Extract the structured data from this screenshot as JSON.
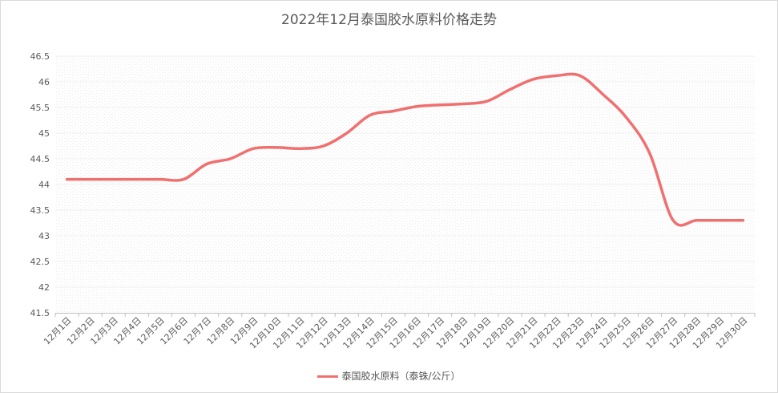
{
  "chart_data": {
    "type": "line",
    "title": "2022年12月泰国胶水原料价格走势",
    "xlabel": "",
    "ylabel": "",
    "ylim": [
      41.5,
      46.5
    ],
    "yticks": [
      "41.5",
      "42",
      "42.5",
      "43",
      "43.5",
      "44",
      "44.5",
      "45",
      "45.5",
      "46",
      "46.5"
    ],
    "categories": [
      "12月1日",
      "12月2日",
      "12月3日",
      "12月4日",
      "12月5日",
      "12月6日",
      "12月7日",
      "12月8日",
      "12月9日",
      "12月10日",
      "12月11日",
      "12月12日",
      "12月13日",
      "12月14日",
      "12月15日",
      "12月16日",
      "12月17日",
      "12月18日",
      "12月19日",
      "12月20日",
      "12月21日",
      "12月22日",
      "12月23日",
      "12月24日",
      "12月25日",
      "12月26日",
      "12月27日",
      "12月28日",
      "12月29日",
      "12月30日"
    ],
    "series": [
      {
        "name": "泰国胶水原料（泰铢/公斤）",
        "color": "#f07070",
        "values": [
          44.1,
          44.1,
          44.1,
          44.1,
          44.1,
          44.1,
          44.4,
          44.5,
          44.7,
          44.72,
          44.7,
          44.75,
          45.0,
          45.35,
          45.43,
          45.52,
          45.55,
          45.57,
          45.62,
          45.85,
          46.05,
          46.12,
          46.12,
          45.75,
          45.3,
          44.6,
          43.3,
          43.3,
          43.3,
          43.3
        ]
      }
    ],
    "grid": true,
    "legend": "bottom"
  }
}
